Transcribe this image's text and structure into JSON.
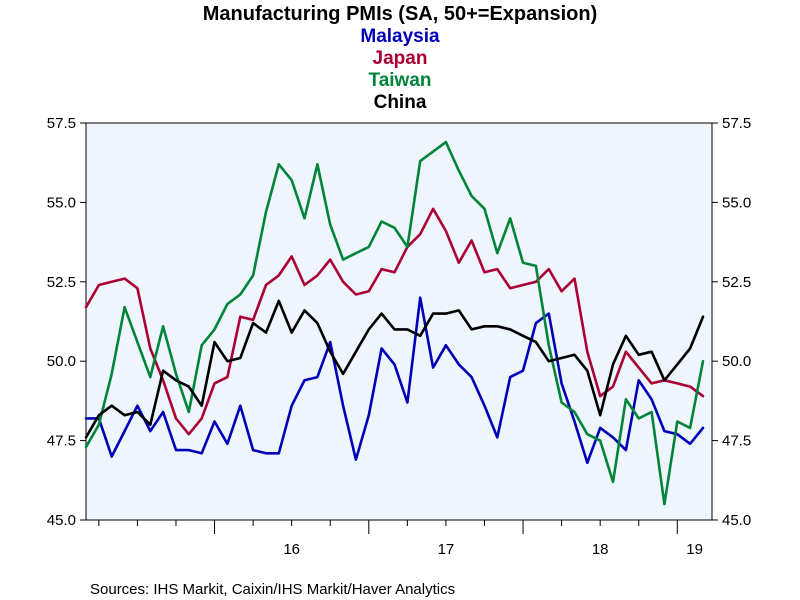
{
  "chart_data": {
    "type": "line",
    "title": "Manufacturing PMIs (SA, 50+=Expansion)",
    "source": "Sources:  IHS Markit, Caixin/IHS Markit/Haver Analytics",
    "xlabel": "",
    "ylabel": "",
    "ylim": [
      45.0,
      57.5
    ],
    "yticks": [
      "45.0",
      "47.5",
      "50.0",
      "52.5",
      "55.0",
      "57.5"
    ],
    "year_labels": [
      "16",
      "17",
      "18",
      "19"
    ],
    "x_start": "2015-03",
    "x_end": "2019-03",
    "grid": false,
    "plot_background": "#eef5fc",
    "series": [
      {
        "name": "Malaysia",
        "color": "#0000b8",
        "values": [
          48.2,
          48.2,
          47.0,
          47.8,
          48.6,
          47.8,
          48.4,
          47.2,
          47.2,
          47.1,
          48.1,
          47.4,
          48.6,
          47.2,
          47.1,
          47.1,
          48.6,
          49.4,
          49.5,
          50.6,
          48.6,
          46.9,
          48.3,
          50.4,
          49.9,
          48.7,
          52.0,
          49.8,
          50.5,
          49.9,
          49.5,
          48.6,
          47.6,
          49.5,
          49.7,
          51.2,
          51.5,
          49.3,
          48.1,
          46.8,
          47.9,
          47.6,
          47.2,
          49.4,
          48.8,
          47.8,
          47.7,
          47.4,
          47.9
        ]
      },
      {
        "name": "Japan",
        "color": "#aa0033",
        "values": [
          51.7,
          52.4,
          52.5,
          52.6,
          52.3,
          50.4,
          49.4,
          48.2,
          47.7,
          48.2,
          49.3,
          49.5,
          51.4,
          51.3,
          52.4,
          52.7,
          53.3,
          52.4,
          52.7,
          53.2,
          52.5,
          52.1,
          52.2,
          52.9,
          52.8,
          53.6,
          54.0,
          54.8,
          54.1,
          53.1,
          53.8,
          52.8,
          52.9,
          52.3,
          52.4,
          52.5,
          52.9,
          52.2,
          52.6,
          50.3,
          48.9,
          49.2,
          50.3,
          49.8,
          49.3,
          49.4,
          49.3,
          49.2,
          48.9
        ]
      },
      {
        "name": "Taiwan",
        "color": "#00843a",
        "values": [
          47.3,
          48.0,
          49.6,
          51.7,
          50.6,
          49.5,
          51.1,
          49.6,
          48.4,
          50.5,
          51.0,
          51.8,
          52.1,
          52.7,
          54.7,
          56.2,
          55.7,
          54.5,
          56.2,
          54.3,
          53.2,
          53.4,
          53.6,
          54.4,
          54.2,
          53.6,
          56.3,
          56.6,
          56.9,
          56.0,
          55.2,
          54.8,
          53.4,
          54.5,
          53.1,
          53.0,
          50.5,
          48.7,
          48.4,
          47.7,
          47.5,
          46.2,
          48.8,
          48.2,
          48.4,
          45.5,
          48.1,
          47.9,
          50.0
        ]
      },
      {
        "name": "China",
        "color": "#000000",
        "values": [
          47.6,
          48.3,
          48.6,
          48.3,
          48.4,
          48.0,
          49.7,
          49.4,
          49.2,
          48.6,
          50.6,
          50.0,
          50.1,
          51.2,
          50.9,
          51.9,
          50.9,
          51.6,
          51.2,
          50.3,
          49.6,
          50.3,
          51.0,
          51.5,
          51.0,
          51.0,
          50.8,
          51.5,
          51.5,
          51.6,
          51.0,
          51.1,
          51.1,
          51.0,
          50.8,
          50.6,
          50.0,
          50.1,
          50.2,
          49.7,
          48.3,
          49.9,
          50.8,
          50.2,
          50.3,
          49.4,
          49.9,
          50.4,
          51.4
        ]
      }
    ]
  }
}
